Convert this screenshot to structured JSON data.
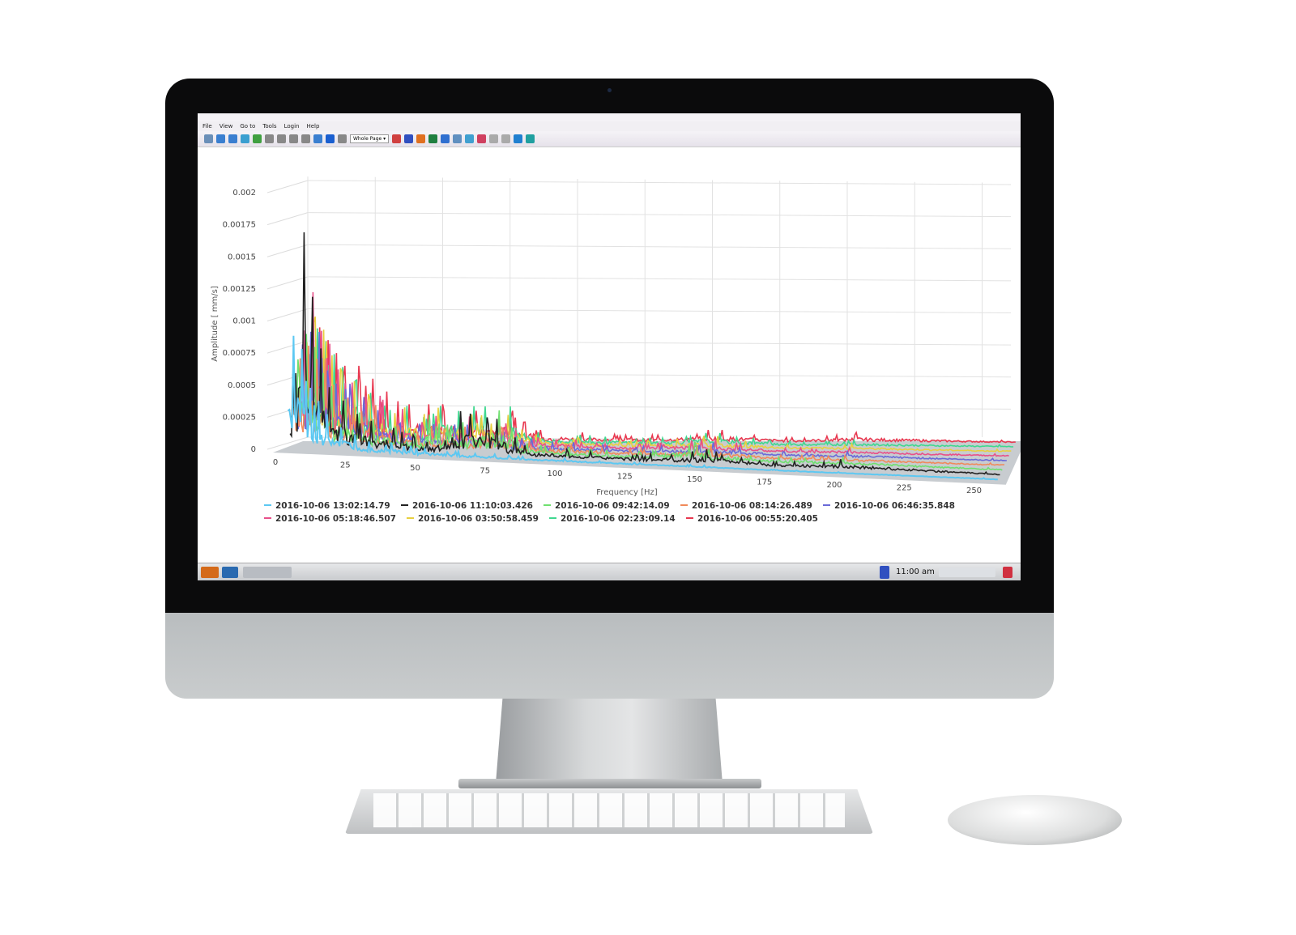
{
  "menu": [
    "File",
    "View",
    "Go to",
    "Tools",
    "Login",
    "Help"
  ],
  "toolbar": {
    "zoom_select": "Whole Page",
    "icon_colors": [
      "#6a8fb8",
      "#3a7fd0",
      "#3a7fd0",
      "#3a9fd0",
      "#40a040",
      "#888",
      "#888",
      "#888",
      "#888",
      "#3a7fd0",
      "#1a5fd0",
      "#888",
      "#d04040",
      "#3050c0",
      "#e07020",
      "#208040",
      "#3070d0",
      "#6090c0",
      "#40a0d0",
      "#d04060",
      "#aaa",
      "#aaa",
      "#2080d0",
      "#20a0a0"
    ]
  },
  "taskbar": {
    "clock": "11:00 am"
  },
  "chart_data": {
    "type": "line",
    "style": "3d-waterfall",
    "xlabel": "Frequency [Hz]",
    "ylabel": "Amplitude [ mm/s]",
    "xlim": [
      0,
      260
    ],
    "ylim": [
      0,
      0.002
    ],
    "xticks": [
      "0",
      "25",
      "50",
      "75",
      "100",
      "125",
      "150",
      "175",
      "200",
      "225",
      "250"
    ],
    "yticks": [
      "0",
      "0.00025",
      "0.0005",
      "0.00075",
      "0.001",
      "0.00125",
      "0.0015",
      "0.00175",
      "0.002"
    ],
    "grid": true,
    "legend_position": "bottom",
    "x": [
      3,
      6,
      9,
      12,
      15,
      20,
      25,
      30,
      38,
      45,
      50,
      62,
      75,
      85,
      100,
      125,
      145,
      150,
      175,
      198,
      250
    ],
    "series": [
      {
        "name": "2016-10-06 13:02:14.79",
        "color": "#5cc8f2",
        "values": [
          0.0009,
          0.0008,
          0.0005,
          0.0004,
          0.0003,
          0.0002,
          0.00015,
          0.0001,
          0.0001,
          8e-05,
          6e-05,
          5e-05,
          4e-05,
          3e-05,
          3e-05,
          2e-05,
          2e-05,
          2e-05,
          1e-05,
          1e-05,
          1e-05
        ]
      },
      {
        "name": "2016-10-06 11:10:03.426",
        "color": "#222222",
        "values": [
          0.0006,
          0.0017,
          0.0012,
          0.0008,
          0.0005,
          0.0004,
          0.0003,
          0.00025,
          0.0002,
          0.00015,
          0.0001,
          0.00035,
          0.0003,
          0.0001,
          8e-05,
          6e-05,
          0.0001,
          0.00012,
          4e-05,
          8e-05,
          2e-05
        ]
      },
      {
        "name": "2016-10-06 09:42:14.09",
        "color": "#6fe06f",
        "values": [
          0.0007,
          0.0009,
          0.0008,
          0.0006,
          0.0005,
          0.0004,
          0.0003,
          0.00025,
          0.0002,
          0.00015,
          0.0003,
          0.00025,
          0.00035,
          0.0001,
          8e-05,
          6e-05,
          0.00015,
          0.0001,
          5e-05,
          6e-05,
          2e-05
        ]
      },
      {
        "name": "2016-10-06 08:14:26.489",
        "color": "#f08a5a",
        "values": [
          0.0007,
          0.0008,
          0.0007,
          0.0007,
          0.0005,
          0.0004,
          0.0003,
          0.00035,
          0.0002,
          0.00015,
          0.0002,
          0.0002,
          0.0002,
          0.0001,
          8e-05,
          6e-05,
          0.0001,
          0.0001,
          4e-05,
          5e-05,
          2e-05
        ]
      },
      {
        "name": "2016-10-06 06:46:35.848",
        "color": "#6a6ad8",
        "values": [
          0.0008,
          0.0009,
          0.0009,
          0.0006,
          0.0005,
          0.0005,
          0.0004,
          0.0003,
          0.0002,
          0.0002,
          0.0002,
          0.0002,
          0.00015,
          0.0001,
          8e-05,
          6e-05,
          8e-05,
          0.0001,
          4e-05,
          5e-05,
          2e-05
        ]
      },
      {
        "name": "2016-10-06 05:18:46.507",
        "color": "#e8508a",
        "values": [
          0.0009,
          0.0012,
          0.0009,
          0.0008,
          0.0006,
          0.0005,
          0.0004,
          0.0004,
          0.0003,
          0.0002,
          0.00025,
          0.00025,
          0.0002,
          0.0001,
          8e-05,
          6e-05,
          0.0001,
          0.0001,
          4e-05,
          5e-05,
          2e-05
        ]
      },
      {
        "name": "2016-10-06 03:50:58.459",
        "color": "#e8d040",
        "values": [
          0.0008,
          0.001,
          0.0009,
          0.0007,
          0.0006,
          0.0005,
          0.0004,
          0.0003,
          0.0003,
          0.00025,
          0.0003,
          0.00025,
          0.00025,
          0.0001,
          8e-05,
          6e-05,
          0.0001,
          0.0001,
          4e-05,
          5e-05,
          2e-05
        ]
      },
      {
        "name": "2016-10-06 02:23:09.14",
        "color": "#40d890",
        "values": [
          0.0007,
          0.0009,
          0.0008,
          0.0007,
          0.0006,
          0.0005,
          0.0004,
          0.0003,
          0.0003,
          0.0002,
          0.0003,
          0.0003,
          0.0003,
          0.0001,
          8e-05,
          6e-05,
          0.0001,
          0.0001,
          4e-05,
          5e-05,
          2e-05
        ]
      },
      {
        "name": "2016-10-06 00:55:20.405",
        "color": "#e83850",
        "values": [
          0.0008,
          0.0009,
          0.0008,
          0.0007,
          0.0006,
          0.0006,
          0.0005,
          0.0004,
          0.0003,
          0.0003,
          0.0003,
          0.00025,
          0.00025,
          0.0001,
          8e-05,
          6e-05,
          0.0001,
          0.0001,
          4e-05,
          8e-05,
          2e-05
        ]
      }
    ]
  }
}
